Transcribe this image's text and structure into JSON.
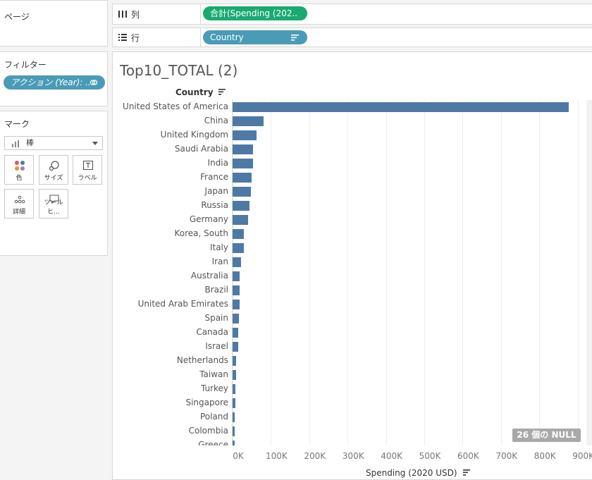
{
  "left": {
    "pages_title": "ページ",
    "filters_title": "フィルター",
    "filter_pill": "アクション (Year): ..",
    "marks_title": "マーク",
    "mark_type": "棒",
    "mark_buttons": [
      "色",
      "サイズ",
      "ラベル",
      "詳細",
      "ツールヒ…"
    ]
  },
  "shelves": {
    "columns_label": "列",
    "columns_pill": "合計(Spending (202..",
    "rows_label": "行",
    "rows_pill": "Country"
  },
  "view": {
    "title": "Top10_TOTAL (2)",
    "null_badge": "26 個の NULL"
  },
  "chart_data": {
    "type": "bar",
    "orientation": "horizontal",
    "ylabel": "Country",
    "xlabel": "Spending (2020 USD)",
    "xlim": [
      0,
      900000
    ],
    "xticks": [
      "0K",
      "100K",
      "200K",
      "300K",
      "400K",
      "500K",
      "600K",
      "700K",
      "800K",
      "900K"
    ],
    "categories": [
      "United States of America",
      "China",
      "United Kingdom",
      "Saudi Arabia",
      "India",
      "France",
      "Japan",
      "Russia",
      "Germany",
      "Korea, South",
      "Italy",
      "Iran",
      "Australia",
      "Brazil",
      "United Arab Emirates",
      "Spain",
      "Canada",
      "Israel",
      "Netherlands",
      "Taiwan",
      "Turkey",
      "Singapore",
      "Poland",
      "Colombia",
      "Greece"
    ],
    "values": [
      877000,
      80000,
      62000,
      54000,
      54000,
      49000,
      47000,
      45000,
      41000,
      30000,
      29000,
      22000,
      18000,
      18000,
      18000,
      16000,
      15000,
      14000,
      9000,
      9000,
      7000,
      7000,
      6000,
      6000,
      5000
    ],
    "grid": true,
    "bar_color": "#4e79a7"
  }
}
